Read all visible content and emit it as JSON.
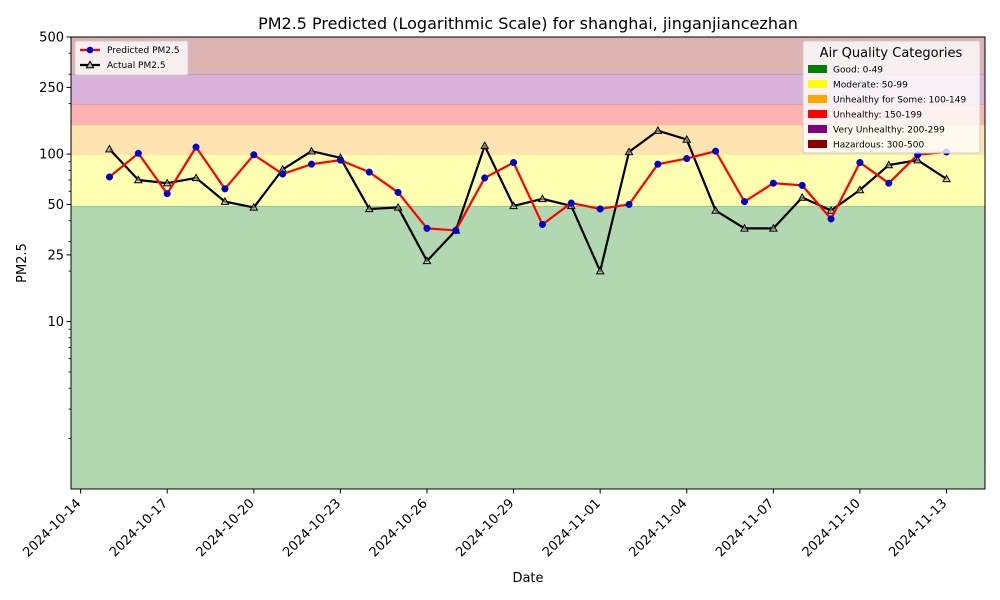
{
  "chart_data": {
    "type": "line",
    "title": "PM2.5 Predicted (Logarithmic Scale) for shanghai, jinganjiancezhan",
    "xlabel": "Date",
    "ylabel": "PM2.5",
    "yscale": "log",
    "ylim": [
      1,
      500
    ],
    "xlim": [
      "2024-10-13T16:00",
      "2024-11-14T08:00"
    ],
    "y_ticks": [
      {
        "value": 10,
        "label": "10"
      },
      {
        "value": 25,
        "label": "25"
      },
      {
        "value": 50,
        "label": "50"
      },
      {
        "value": 100,
        "label": "100"
      },
      {
        "value": 250,
        "label": "250"
      },
      {
        "value": 500,
        "label": "500"
      }
    ],
    "x_ticks": [
      "2024-10-14",
      "2024-10-17",
      "2024-10-20",
      "2024-10-23",
      "2024-10-26",
      "2024-10-29",
      "2024-11-01",
      "2024-11-04",
      "2024-11-07",
      "2024-11-10",
      "2024-11-13"
    ],
    "grid": false,
    "x": [
      "2024-10-15",
      "2024-10-16",
      "2024-10-17",
      "2024-10-18",
      "2024-10-19",
      "2024-10-20",
      "2024-10-21",
      "2024-10-22",
      "2024-10-23",
      "2024-10-24",
      "2024-10-25",
      "2024-10-26",
      "2024-10-27",
      "2024-10-28",
      "2024-10-29",
      "2024-10-30",
      "2024-10-31",
      "2024-11-01",
      "2024-11-02",
      "2024-11-03",
      "2024-11-04",
      "2024-11-05",
      "2024-11-06",
      "2024-11-07",
      "2024-11-08",
      "2024-11-09",
      "2024-11-10",
      "2024-11-11",
      "2024-11-12",
      "2024-11-13"
    ],
    "series": [
      {
        "name": "Predicted PM2.5",
        "color": "#ff0000",
        "marker_color": "#0000cc",
        "marker": "circle",
        "values": [
          73,
          101,
          58,
          110,
          62,
          99,
          76,
          87,
          92,
          78,
          59,
          36,
          35,
          72,
          89,
          38,
          51,
          47,
          50,
          87,
          94,
          104,
          52,
          67,
          65,
          41,
          89,
          67,
          99,
          103
        ]
      },
      {
        "name": "Actual PM2.5",
        "color": "#000000",
        "marker": "triangle",
        "values": [
          107,
          70,
          67,
          72,
          52,
          48,
          81,
          104,
          95,
          47,
          48,
          23,
          35,
          112,
          49,
          54,
          49,
          20,
          103,
          138,
          122,
          46,
          36,
          36,
          55,
          46,
          61,
          86,
          92,
          71
        ]
      }
    ],
    "categories_bands": {
      "title": "Air Quality Categories",
      "items": [
        {
          "label": "Good: 0-49",
          "color": "#008000",
          "band_color": "#b2d8b2",
          "from": 0,
          "to": 49
        },
        {
          "label": "Moderate: 50-99",
          "color": "#ffff00",
          "band_color": "#ffffb2",
          "from": 49,
          "to": 99
        },
        {
          "label": "Unhealthy for Some: 100-149",
          "color": "#ffa500",
          "band_color": "#ffe4b2",
          "from": 99,
          "to": 149
        },
        {
          "label": "Unhealthy: 150-199",
          "color": "#ff0000",
          "band_color": "#ffb2b2",
          "from": 149,
          "to": 199
        },
        {
          "label": "Very Unhealthy: 200-299",
          "color": "#800080",
          "band_color": "#d8b2d8",
          "from": 199,
          "to": 299
        },
        {
          "label": "Hazardous: 300-500",
          "color": "#8b0000",
          "band_color": "#dcb2b2",
          "from": 299,
          "to": 500
        }
      ]
    },
    "legend_placement": "top-left"
  }
}
